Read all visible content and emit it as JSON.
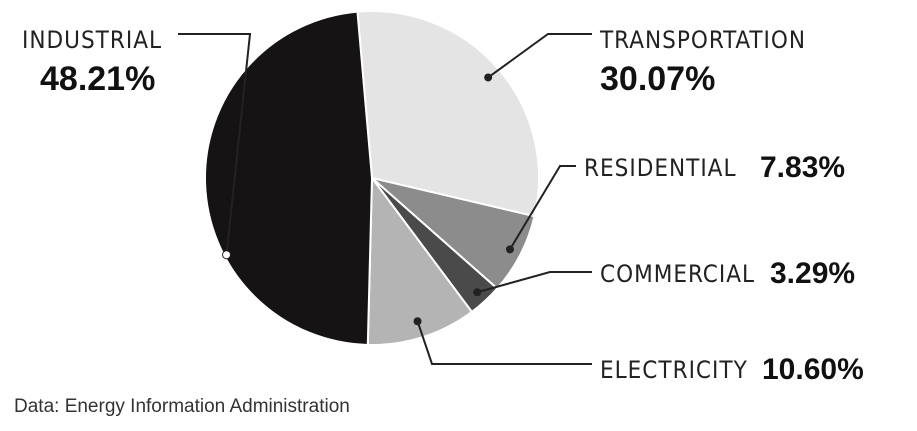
{
  "chart_data": {
    "type": "pie",
    "title": "",
    "slices": [
      {
        "label": "INDUSTRIAL",
        "value": 48.21,
        "display": "48.21%",
        "color": "#161314"
      },
      {
        "label": "TRANSPORTATION",
        "value": 30.07,
        "display": "30.07%",
        "color": "#e4e4e4"
      },
      {
        "label": "RESIDENTIAL",
        "value": 7.83,
        "display": "7.83%",
        "color": "#8c8c8c"
      },
      {
        "label": "COMMERCIAL",
        "value": 3.29,
        "display": "3.29%",
        "color": "#4a4a4a"
      },
      {
        "label": "ELECTRICITY",
        "value": 10.6,
        "display": "10.60%",
        "color": "#b4b4b4"
      }
    ],
    "source": "Data: Energy Information Administration"
  }
}
